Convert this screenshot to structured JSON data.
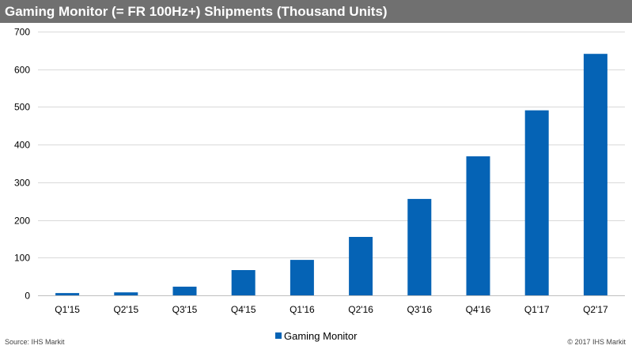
{
  "chart_data": {
    "type": "bar",
    "title": "Gaming Monitor (= FR 100Hz+) Shipments (Thousand Units)",
    "categories": [
      "Q1'15",
      "Q2'15",
      "Q3'15",
      "Q4'15",
      "Q1'16",
      "Q2'16",
      "Q3'16",
      "Q4'16",
      "Q1'17",
      "Q2'17"
    ],
    "series": [
      {
        "name": "Gaming Monitor",
        "values": [
          6,
          8,
          23,
          67,
          94,
          155,
          256,
          369,
          491,
          641
        ]
      }
    ],
    "ylim": [
      0,
      700
    ],
    "yticks": [
      0,
      100,
      200,
      300,
      400,
      500,
      600,
      700
    ],
    "grid": true,
    "legend_position": "bottom-center",
    "xlabel": "",
    "ylabel": ""
  },
  "colors": {
    "bar": "#0563B5",
    "title_bar": "#707070",
    "grid": "#d9d9d9"
  },
  "footer": {
    "source": "Source:  IHS Markit",
    "copyright": "© 2017  IHS Markit"
  }
}
